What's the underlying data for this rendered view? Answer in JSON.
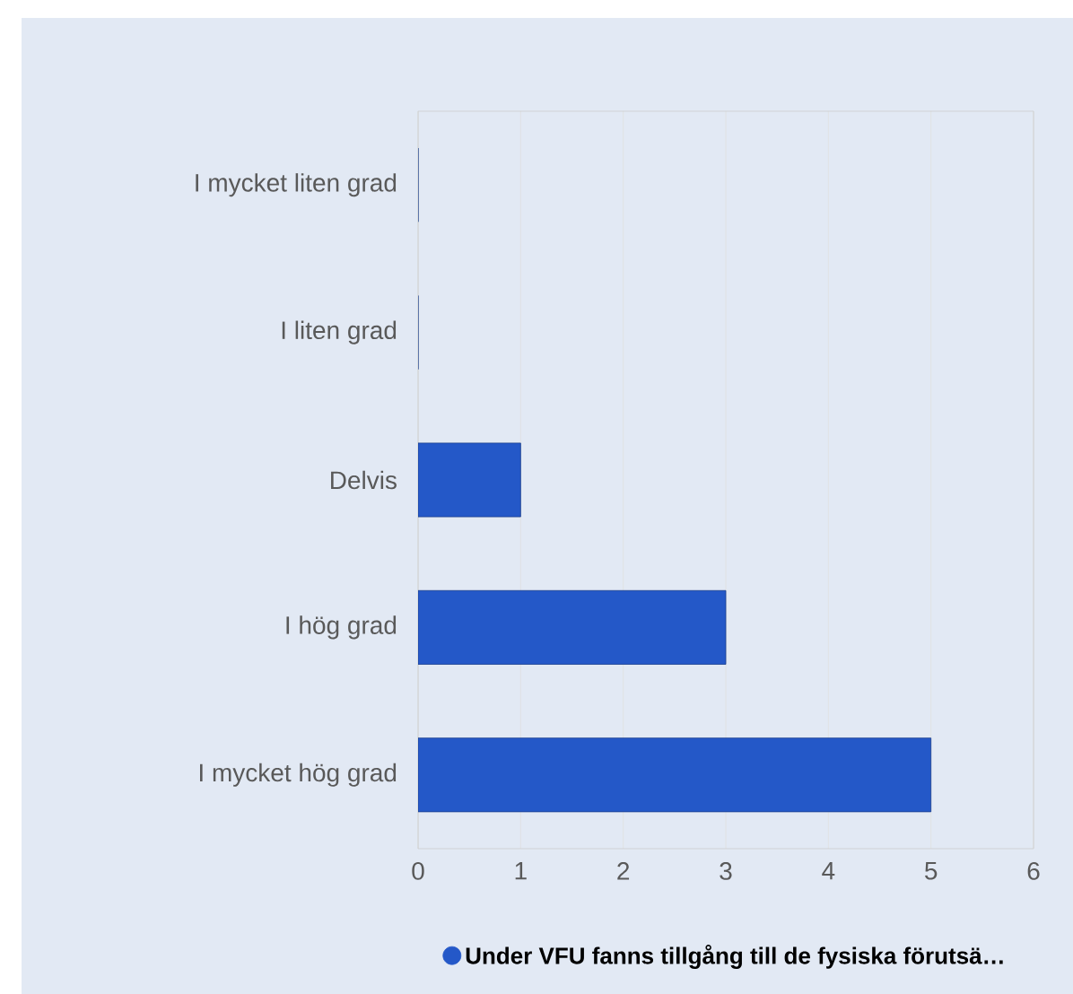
{
  "chart_data": {
    "type": "bar",
    "orientation": "horizontal",
    "categories": [
      "I mycket liten grad",
      "I liten grad",
      "Delvis",
      "I hög grad",
      "I mycket hög grad"
    ],
    "series": [
      {
        "name": "Under VFU fanns tillgång till de fysiska förutsä…",
        "color": "#2458c8",
        "values": [
          0,
          0,
          1,
          3,
          5
        ]
      }
    ],
    "xlim": [
      0,
      6
    ],
    "xticks": [
      0,
      1,
      2,
      3,
      4,
      5,
      6
    ],
    "grid": "x",
    "legend": "bottom"
  }
}
